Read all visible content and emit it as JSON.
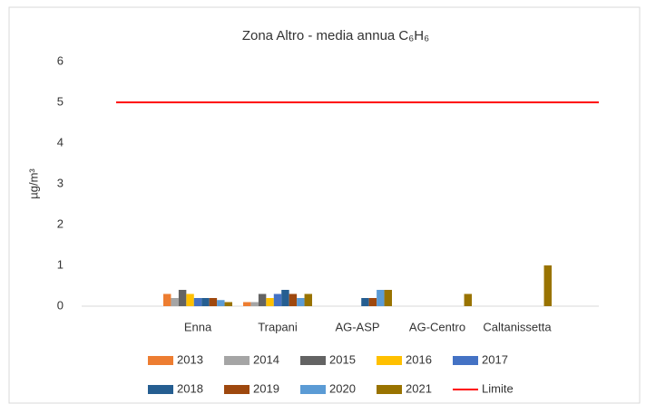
{
  "chart_data": {
    "type": "bar",
    "title": "Zona Altro - media annua C₆H₆",
    "y_label": "µg/m³",
    "categories": [
      "Enna",
      "Trapani",
      "AG-ASP",
      "AG-Centro",
      "Caltanissetta"
    ],
    "series": [
      {
        "name": "2013",
        "color": "#ed7d31",
        "values": [
          0.3,
          0.1,
          null,
          null,
          null
        ]
      },
      {
        "name": "2014",
        "color": "#a5a5a5",
        "values": [
          0.2,
          0.1,
          null,
          null,
          null
        ]
      },
      {
        "name": "2015",
        "color": "#636363",
        "values": [
          0.4,
          0.3,
          null,
          null,
          null
        ]
      },
      {
        "name": "2016",
        "color": "#ffc000",
        "values": [
          0.3,
          0.2,
          null,
          null,
          null
        ]
      },
      {
        "name": "2017",
        "color": "#4472c4",
        "values": [
          0.2,
          0.3,
          null,
          null,
          null
        ]
      },
      {
        "name": "2018",
        "color": "#255e91",
        "values": [
          0.2,
          0.4,
          0.2,
          null,
          null
        ]
      },
      {
        "name": "2019",
        "color": "#9e480e",
        "values": [
          0.2,
          0.3,
          0.2,
          null,
          null
        ]
      },
      {
        "name": "2020",
        "color": "#5b9bd5",
        "values": [
          0.15,
          0.2,
          0.4,
          null,
          null
        ]
      },
      {
        "name": "2021",
        "color": "#997300",
        "values": [
          0.1,
          0.3,
          0.4,
          0.3,
          1.0
        ]
      },
      {
        "name": "Limite",
        "color": "#ff0000",
        "type": "line",
        "values": [
          5,
          5,
          5,
          5,
          5
        ]
      }
    ],
    "ylim": [
      0,
      6
    ],
    "yticks": [
      0,
      1,
      2,
      3,
      4,
      5,
      6
    ],
    "grid": false
  }
}
